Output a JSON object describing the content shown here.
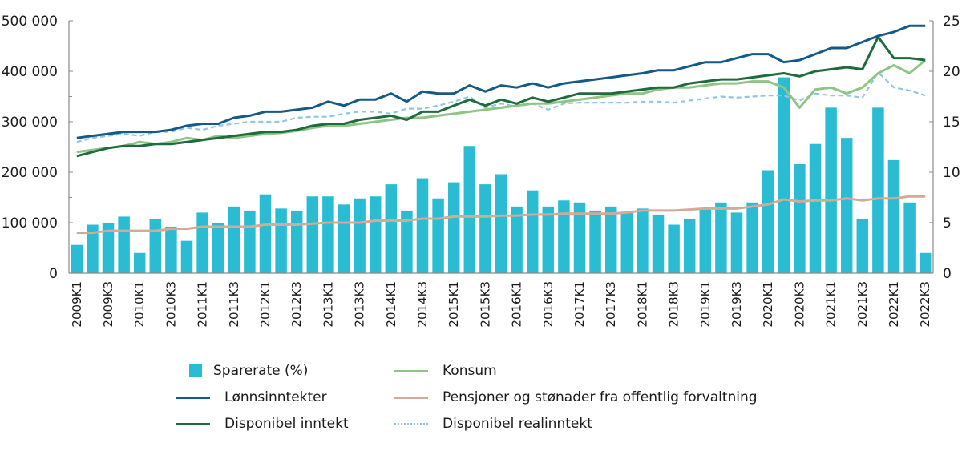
{
  "chart_data": {
    "type": "bar",
    "title": "",
    "xlabel": "",
    "ylabel_left": "",
    "ylabel_right": "",
    "left_axis": {
      "min": 0,
      "max": 500000,
      "ticks": [
        0,
        100000,
        200000,
        300000,
        400000,
        500000
      ],
      "tick_labels": [
        "0",
        "100 000",
        "200 000",
        "300 000",
        "400 000",
        "500 000"
      ]
    },
    "right_axis": {
      "min": 0,
      "max": 25,
      "ticks": [
        0,
        5,
        10,
        15,
        20,
        25
      ],
      "tick_labels": [
        "0",
        "5",
        "10",
        "15",
        "20",
        "25"
      ]
    },
    "grid": false,
    "legend_position": "bottom",
    "categories": [
      "2009K1",
      "2009K2",
      "2009K3",
      "2009K4",
      "2010K1",
      "2010K2",
      "2010K3",
      "2010K4",
      "2011K1",
      "2011K2",
      "2011K3",
      "2011K4",
      "2012K1",
      "2012K2",
      "2012K3",
      "2012K4",
      "2013K1",
      "2013K2",
      "2013K3",
      "2013K4",
      "2014K1",
      "2014K2",
      "2014K3",
      "2014K4",
      "2015K1",
      "2015K2",
      "2015K3",
      "2015K4",
      "2016K1",
      "2016K2",
      "2016K3",
      "2016K4",
      "2017K1",
      "2017K2",
      "2017K3",
      "2017K4",
      "2018K1",
      "2018K2",
      "2018K3",
      "2018K4",
      "2019K1",
      "2019K2",
      "2019K3",
      "2019K4",
      "2020K1",
      "2020K2",
      "2020K3",
      "2020K4",
      "2021K1",
      "2021K2",
      "2021K3",
      "2021K4",
      "2022K1",
      "2022K2",
      "2022K3"
    ],
    "x_tick_labels": [
      "2009K1",
      "2009K3",
      "2010K1",
      "2010K3",
      "2011K1",
      "2011K3",
      "2012K1",
      "2012K3",
      "2013K1",
      "2013K3",
      "2014K1",
      "2014K3",
      "2015K1",
      "2015K3",
      "2016K1",
      "2016K3",
      "2017K1",
      "2017K3",
      "2018K1",
      "2018K3",
      "2019K1",
      "2019K3",
      "2020K1",
      "2020K3",
      "2021K1",
      "2021K3",
      "2022K1",
      "2022K3"
    ],
    "series": [
      {
        "name": "Sparerate (%)",
        "kind": "bar",
        "axis": "right",
        "color": "#29bcd2",
        "values": [
          2.8,
          4.8,
          5.0,
          5.6,
          2.0,
          5.4,
          4.6,
          3.2,
          6.0,
          5.0,
          6.6,
          6.2,
          7.8,
          6.4,
          6.2,
          7.6,
          7.6,
          6.8,
          7.4,
          7.6,
          8.8,
          6.2,
          9.4,
          7.4,
          9.0,
          12.6,
          8.8,
          9.8,
          6.6,
          8.2,
          6.6,
          7.2,
          7.0,
          6.2,
          6.6,
          6.0,
          6.4,
          5.8,
          4.8,
          5.4,
          6.4,
          7.0,
          6.0,
          7.0,
          10.2,
          19.4,
          10.8,
          12.8,
          16.4,
          13.4,
          5.4,
          16.4,
          11.2,
          7.0,
          2.0
        ]
      },
      {
        "name": "Lønnsinntekter",
        "kind": "line",
        "axis": "left",
        "color": "#135a88",
        "dash": "solid",
        "values": [
          268000,
          272000,
          276000,
          280000,
          280000,
          280000,
          284000,
          292000,
          296000,
          296000,
          308000,
          312000,
          320000,
          320000,
          324000,
          328000,
          340000,
          332000,
          344000,
          344000,
          356000,
          340000,
          360000,
          356000,
          356000,
          372000,
          360000,
          372000,
          368000,
          376000,
          368000,
          376000,
          380000,
          384000,
          388000,
          392000,
          396000,
          402000,
          402000,
          410000,
          418000,
          418000,
          426000,
          434000,
          434000,
          418000,
          422000,
          434000,
          446000,
          446000,
          458000,
          470000,
          478000,
          490000,
          490000
        ]
      },
      {
        "name": "Disponibel inntekt",
        "kind": "line",
        "axis": "left",
        "color": "#1e6b3e",
        "dash": "solid",
        "values": [
          232000,
          240000,
          248000,
          252000,
          252000,
          256000,
          256000,
          260000,
          264000,
          268000,
          272000,
          276000,
          280000,
          280000,
          284000,
          292000,
          296000,
          296000,
          304000,
          308000,
          312000,
          304000,
          320000,
          320000,
          332000,
          344000,
          332000,
          344000,
          336000,
          348000,
          340000,
          348000,
          356000,
          356000,
          356000,
          360000,
          364000,
          368000,
          368000,
          376000,
          380000,
          384000,
          384000,
          388000,
          392000,
          396000,
          390000,
          400000,
          404000,
          408000,
          404000,
          468000,
          426000,
          426000,
          422000
        ]
      },
      {
        "name": "Konsum",
        "kind": "line",
        "axis": "left",
        "color": "#8ec585",
        "dash": "solid",
        "values": [
          240000,
          244000,
          248000,
          252000,
          260000,
          256000,
          260000,
          268000,
          264000,
          272000,
          268000,
          272000,
          276000,
          278000,
          282000,
          288000,
          292000,
          292000,
          296000,
          300000,
          304000,
          308000,
          308000,
          312000,
          316000,
          320000,
          324000,
          328000,
          332000,
          336000,
          336000,
          340000,
          344000,
          348000,
          352000,
          356000,
          356000,
          364000,
          368000,
          368000,
          372000,
          376000,
          376000,
          380000,
          380000,
          368000,
          328000,
          364000,
          368000,
          356000,
          368000,
          396000,
          412000,
          396000,
          422000
        ]
      },
      {
        "name": "Pensjoner og stønader fra offentlig forvaltning",
        "kind": "line",
        "axis": "left",
        "color": "#d2aa98",
        "dash": "solid",
        "values": [
          80000,
          80000,
          84000,
          84000,
          84000,
          84000,
          88000,
          88000,
          92000,
          92000,
          92000,
          92000,
          96000,
          96000,
          96000,
          98000,
          100000,
          100000,
          100000,
          104000,
          104000,
          104000,
          108000,
          108000,
          112000,
          112000,
          112000,
          114000,
          114000,
          116000,
          116000,
          118000,
          118000,
          118000,
          118000,
          120000,
          124000,
          124000,
          124000,
          126000,
          128000,
          128000,
          128000,
          132000,
          136000,
          146000,
          142000,
          144000,
          144000,
          148000,
          144000,
          148000,
          148000,
          152000,
          152000
        ]
      },
      {
        "name": "Disponibel realinntekt",
        "kind": "line",
        "axis": "left",
        "color": "#92c4e8",
        "dash": "dashed",
        "values": [
          260000,
          268000,
          272000,
          276000,
          272000,
          280000,
          280000,
          288000,
          284000,
          292000,
          296000,
          300000,
          300000,
          300000,
          308000,
          310000,
          310000,
          316000,
          320000,
          320000,
          316000,
          326000,
          326000,
          332000,
          340000,
          350000,
          328000,
          336000,
          330000,
          336000,
          324000,
          336000,
          338000,
          338000,
          338000,
          338000,
          340000,
          340000,
          338000,
          342000,
          346000,
          350000,
          348000,
          350000,
          352000,
          352000,
          342000,
          356000,
          352000,
          352000,
          348000,
          398000,
          368000,
          362000,
          352000
        ]
      }
    ]
  },
  "legend": {
    "items": [
      {
        "label": "Sparerate (%)",
        "type": "bar",
        "color": "#29bcd2"
      },
      {
        "label": "Konsum",
        "type": "line",
        "color": "#8ec585"
      },
      {
        "label": "Lønnsinntekter",
        "type": "line",
        "color": "#135a88"
      },
      {
        "label": "Pensjoner og stønader fra offentlig forvaltning",
        "type": "line",
        "color": "#d2aa98"
      },
      {
        "label": "Disponibel inntekt",
        "type": "line",
        "color": "#1e6b3e"
      },
      {
        "label": "Disponibel realinntekt",
        "type": "dashed",
        "color": "#92c4e8"
      }
    ]
  }
}
